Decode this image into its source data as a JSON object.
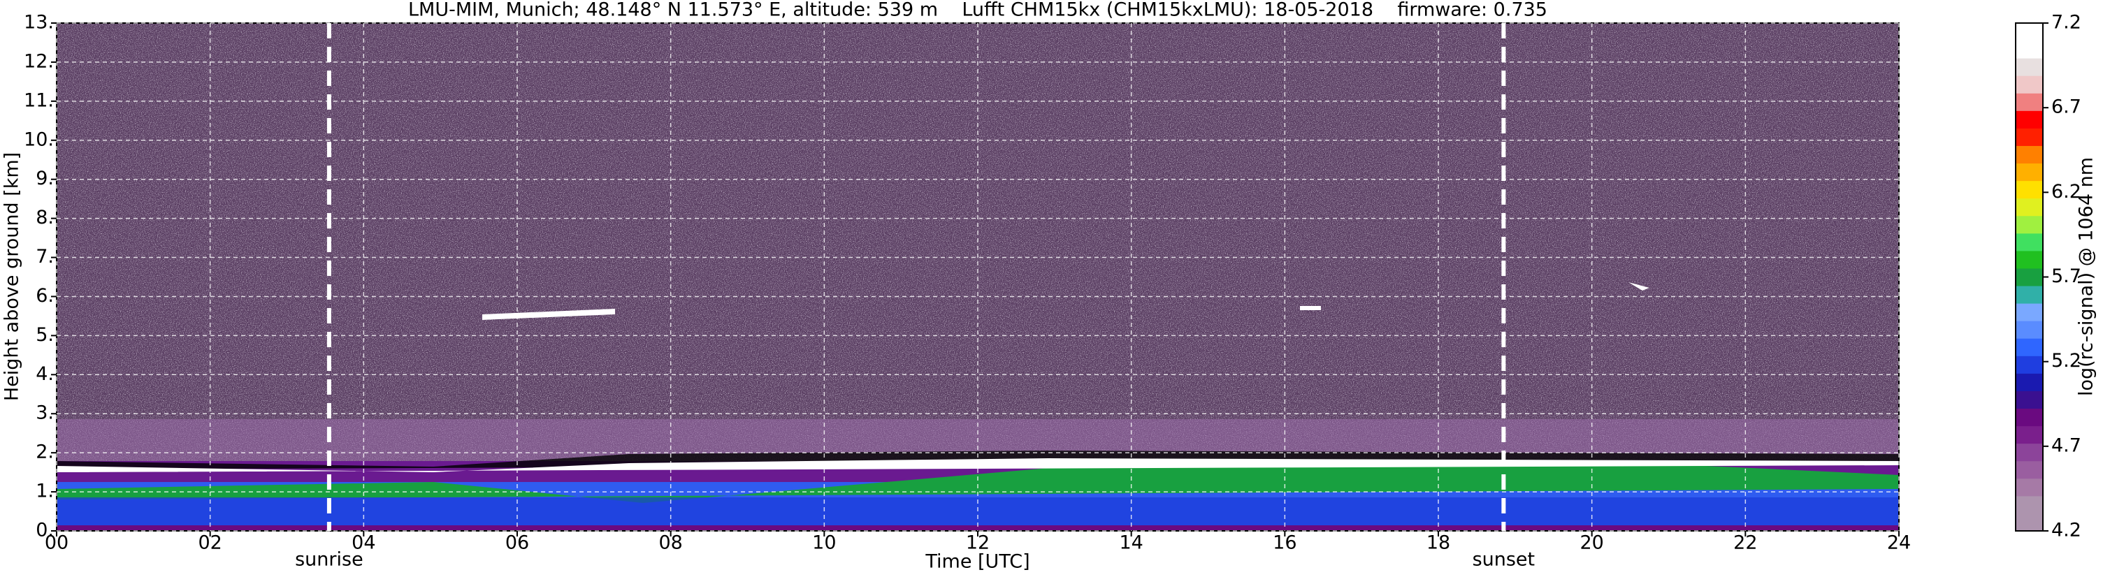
{
  "chart_data": {
    "type": "heatmap",
    "title": "LMU-MIM, Munich; 48.148° N 11.573° E, altitude: 539 m    Lufft CHM15kx (CHM15kxLMU): 18-05-2018    firmware: 0.735",
    "x_label": "Time [UTC]",
    "y_label": "Height above ground [km]",
    "xlim": [
      0,
      24
    ],
    "xticks": [
      {
        "value": 0,
        "label": "00"
      },
      {
        "value": 2,
        "label": "02"
      },
      {
        "value": 4,
        "label": "04"
      },
      {
        "value": 6,
        "label": "06"
      },
      {
        "value": 8,
        "label": "08"
      },
      10,
      12,
      14,
      16,
      18,
      20,
      22,
      24
    ],
    "ylim": [
      0,
      13
    ],
    "yticks": [
      {
        "value": 0,
        "label": "0."
      },
      {
        "value": 1,
        "label": "1."
      },
      {
        "value": 2,
        "label": "2."
      },
      {
        "value": 3,
        "label": "3."
      },
      {
        "value": 4,
        "label": "4."
      },
      {
        "value": 5,
        "label": "5."
      },
      {
        "value": 6,
        "label": "6."
      },
      {
        "value": 7,
        "label": "7."
      },
      {
        "value": 8,
        "label": "8."
      },
      {
        "value": 9,
        "label": "9."
      },
      {
        "value": 10,
        "label": "10."
      },
      {
        "value": 11,
        "label": "11."
      },
      {
        "value": 12,
        "label": "12."
      },
      {
        "value": 13,
        "label": "13."
      }
    ],
    "grid": true,
    "annotations": [
      {
        "x": 3.55,
        "label": "sunrise"
      },
      {
        "x": 18.85,
        "label": "sunset"
      }
    ],
    "colorbar": {
      "label": "log(rc-signal) @ 1064 nm",
      "lim": [
        4.2,
        7.2
      ],
      "ticks": [
        4.2,
        4.7,
        5.2,
        5.7,
        6.2,
        6.7,
        7.2
      ],
      "colors": [
        "#ad94ae",
        "#ad94ae",
        "#a67aa6",
        "#9a5ea0",
        "#8c449a",
        "#7a1f8c",
        "#6a0a80",
        "#3a1090",
        "#1a1ab0",
        "#1f3ee0",
        "#2f66ff",
        "#5a8cff",
        "#7aa8ff",
        "#30b0a8",
        "#18a040",
        "#20c020",
        "#40e060",
        "#a0f040",
        "#e0f020",
        "#ffe000",
        "#ffb000",
        "#ff8000",
        "#ff2000",
        "#ff0000",
        "#f08080",
        "#f0c8c8",
        "#e8e0e0",
        "#ffffff",
        "#ffffff"
      ]
    }
  }
}
